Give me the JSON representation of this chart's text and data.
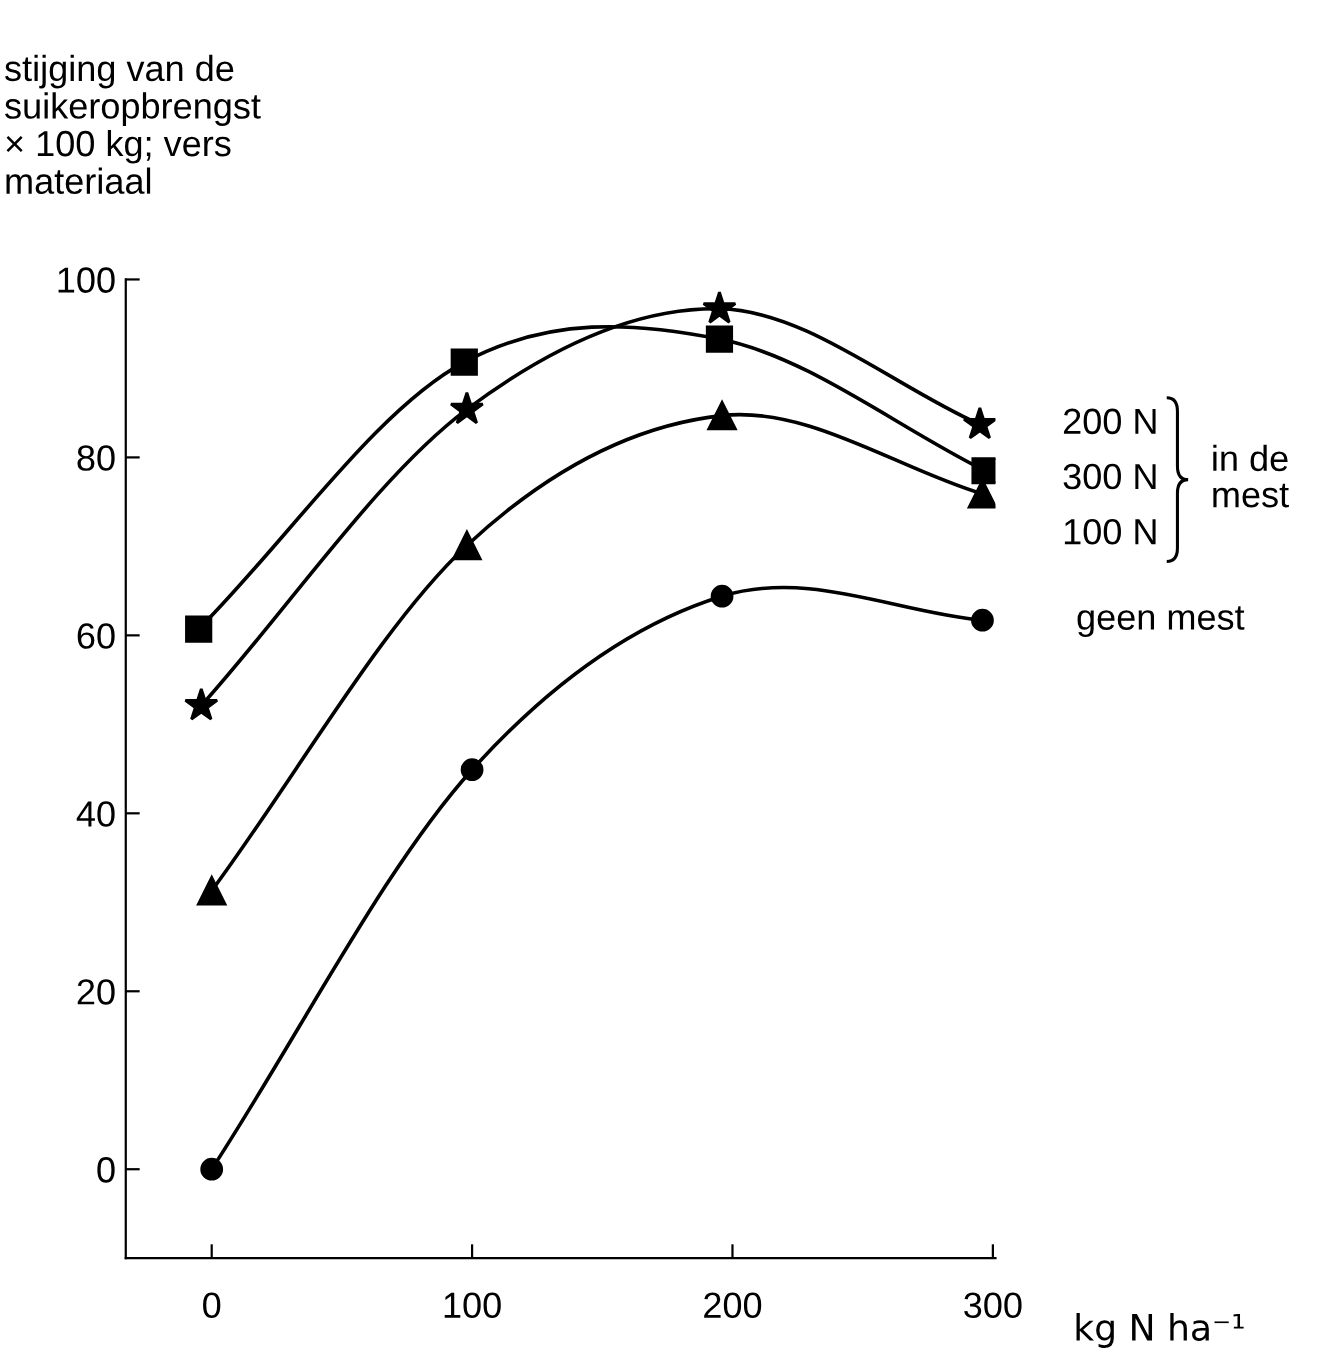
{
  "chart_data": {
    "type": "line",
    "ylabel": "stijging van de\nsuikeropbrengst\n× 100 kg; vers\nmateriaal",
    "xlabel": "kg N ha⁻¹",
    "xlim": [
      -33,
      301
    ],
    "ylim": [
      -10,
      100
    ],
    "xticks": [
      0,
      100,
      200,
      300
    ],
    "yticks": [
      0,
      20,
      40,
      60,
      80,
      100
    ],
    "grid": false,
    "legend": false,
    "line_style": "solid",
    "series": [
      {
        "name": "geen mest",
        "color": "#000000",
        "marker": "circle",
        "x": [
          0,
          100,
          196,
          296
        ],
        "values": [
          0,
          44.9,
          64.4,
          61.7
        ]
      },
      {
        "name": "100 N",
        "color": "#000000",
        "marker": "triangle",
        "x": [
          0,
          98,
          196,
          296
        ],
        "values": [
          31.3,
          70.1,
          84.7,
          75.9
        ]
      },
      {
        "name": "200 N",
        "color": "#000000",
        "marker": "star",
        "x": [
          -4,
          98,
          195,
          295
        ],
        "values": [
          52.1,
          85.4,
          96.7,
          83.7
        ]
      },
      {
        "name": "300 N",
        "color": "#000000",
        "marker": "square",
        "x": [
          -5,
          97,
          195,
          297
        ],
        "values": [
          60.7,
          90.7,
          93.3,
          78.5
        ]
      }
    ],
    "annotations": [
      "in de\nmest"
    ]
  }
}
